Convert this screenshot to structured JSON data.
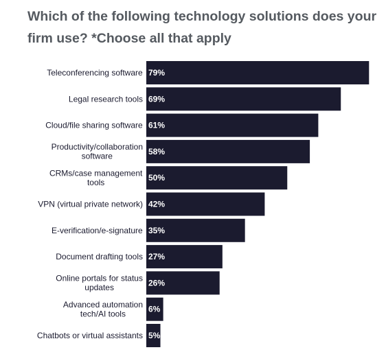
{
  "chart_data": {
    "type": "bar",
    "orientation": "horizontal",
    "title": "Which of the following technology solutions does your firm use? *Choose all that apply",
    "categories": [
      "Teleconferencing software",
      "Legal research tools",
      "Cloud/file sharing software",
      "Productivity/collaboration software",
      "CRMs/case management tools",
      "VPN (virtual private network)",
      "E-verification/e-signature",
      "Document drafting tools",
      "Online portals for status updates",
      "Advanced automation tech/AI tools",
      "Chatbots or virtual assistants"
    ],
    "category_lines": [
      [
        "Teleconferencing software"
      ],
      [
        "Legal research tools"
      ],
      [
        "Cloud/file sharing software"
      ],
      [
        "Productivity/collaboration",
        "software"
      ],
      [
        "CRMs/case management",
        "tools"
      ],
      [
        "VPN (virtual private network)"
      ],
      [
        "E-verification/e-signature"
      ],
      [
        "Document drafting tools"
      ],
      [
        "Online portals for status",
        "updates"
      ],
      [
        "Advanced automation",
        "tech/AI tools"
      ],
      [
        "Chatbots or virtual assistants"
      ]
    ],
    "values": [
      79,
      69,
      61,
      58,
      50,
      42,
      35,
      27,
      26,
      6,
      5
    ],
    "value_labels": [
      "79%",
      "69%",
      "61%",
      "58%",
      "50%",
      "42%",
      "35%",
      "27%",
      "26%",
      "6%",
      "5%"
    ],
    "xlim": [
      0,
      100
    ],
    "unit": "%",
    "grid": false,
    "legend": "none",
    "bar_color": "#1b1b2f"
  }
}
